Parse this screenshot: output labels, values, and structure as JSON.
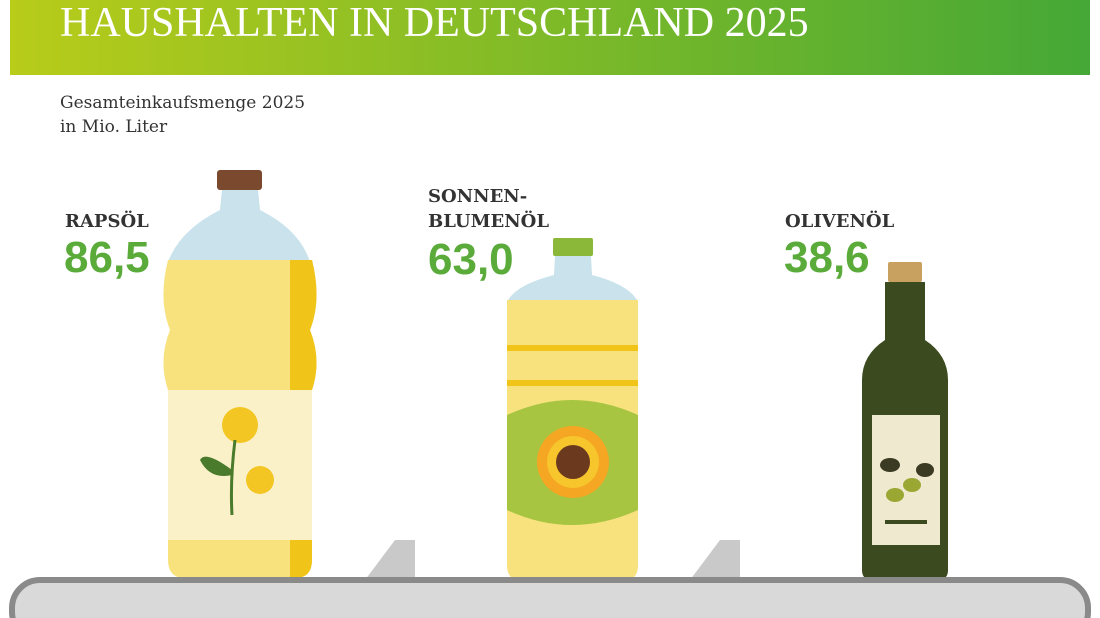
{
  "header": {
    "title": "HAUSHALTEN IN DEUTSCHLAND 2025"
  },
  "subtitle": [
    "Gesamteinkaufsmenge 2025",
    "in Mio. Liter"
  ],
  "items": [
    {
      "label": [
        "RAPSÖL"
      ],
      "value": "86,5"
    },
    {
      "label": [
        "SONNEN-",
        "BLUMENÖL"
      ],
      "value": "63,0"
    },
    {
      "label": [
        "OLIVENÖL"
      ],
      "value": "38,6"
    }
  ]
}
